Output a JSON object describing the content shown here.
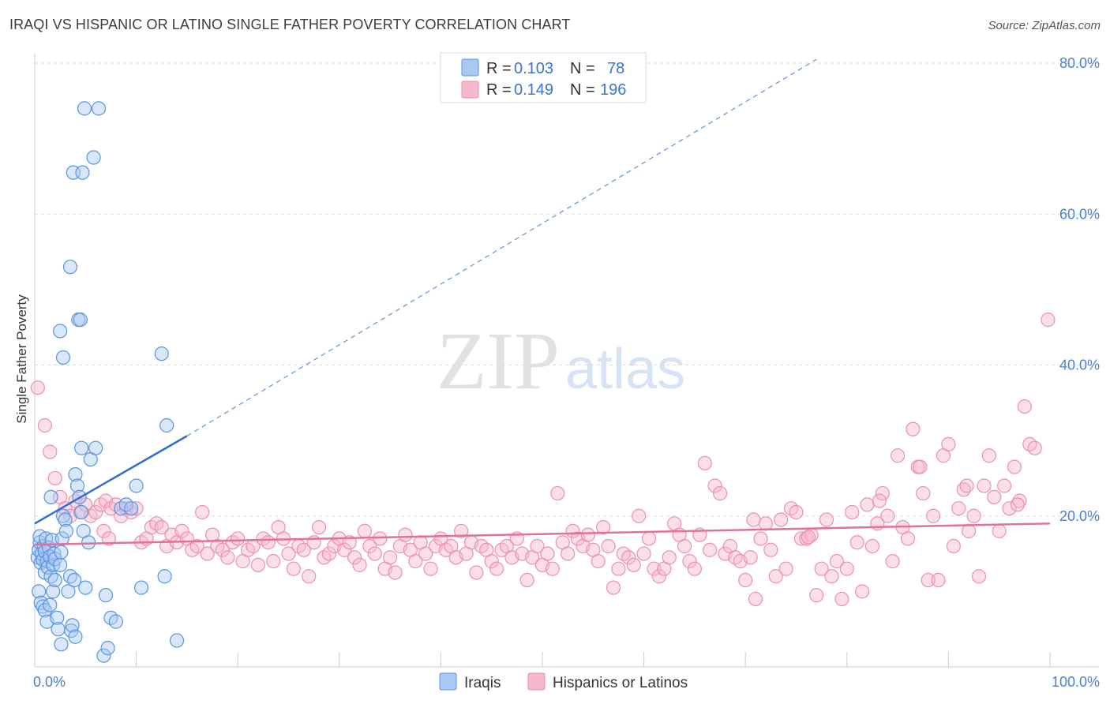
{
  "title": "IRAQI VS HISPANIC OR LATINO SINGLE FATHER POVERTY CORRELATION CHART",
  "source": "Source: ZipAtlas.com",
  "watermark": {
    "zip": "ZIP",
    "atlas": "atlas"
  },
  "colors": {
    "iraqis_fill": "#a9c9f5",
    "iraqis_stroke": "#5b93de",
    "iraqis_line": "#2f6fd0",
    "hisp_fill": "#f7b8cc",
    "hisp_stroke": "#ec8fb0",
    "hisp_line": "#e2709a",
    "axis_text": "#4a7fd4",
    "grid": "#dddddd"
  },
  "legend_top": [
    {
      "r_label": "R =",
      "r_value": "0.103",
      "n_label": "N =",
      "n_value": "78"
    },
    {
      "r_label": "R =",
      "r_value": "0.149",
      "n_label": "N =",
      "n_value": "196"
    }
  ],
  "chart_data": {
    "type": "scatter",
    "title": "IRAQI VS HISPANIC OR LATINO SINGLE FATHER POVERTY CORRELATION CHART",
    "xlabel": "",
    "ylabel": "Single Father Poverty",
    "xlim": [
      0,
      100
    ],
    "ylim": [
      0,
      80
    ],
    "x_tick_labels": [
      {
        "value": 0,
        "label": "0.0%"
      },
      {
        "value": 100,
        "label": "100.0%"
      }
    ],
    "y_tick_labels": [
      {
        "value": 20,
        "label": "20.0%"
      },
      {
        "value": 40,
        "label": "40.0%"
      },
      {
        "value": 60,
        "label": "60.0%"
      },
      {
        "value": 80,
        "label": "80.0%"
      }
    ],
    "grid": "horizontal dashed",
    "legend_position": "bottom-center",
    "series": [
      {
        "name": "Iraqis",
        "r": 0.103,
        "n": 78,
        "trend_solid": [
          [
            0,
            19.0
          ],
          [
            15,
            30.6
          ]
        ],
        "trend_dashed": [
          [
            15,
            30.6
          ],
          [
            77,
            80.5
          ]
        ],
        "points": [
          [
            0.3,
            14.5
          ],
          [
            0.4,
            15.5
          ],
          [
            0.5,
            16.5
          ],
          [
            0.5,
            17.3
          ],
          [
            0.6,
            13.8
          ],
          [
            0.7,
            15.0
          ],
          [
            0.8,
            14.2
          ],
          [
            0.9,
            16.0
          ],
          [
            1.0,
            15.3
          ],
          [
            1.0,
            12.5
          ],
          [
            1.1,
            17.0
          ],
          [
            1.2,
            14.0
          ],
          [
            1.3,
            13.2
          ],
          [
            1.4,
            15.8
          ],
          [
            1.5,
            14.6
          ],
          [
            1.6,
            12.0
          ],
          [
            1.7,
            16.8
          ],
          [
            1.8,
            13.5
          ],
          [
            1.9,
            15.0
          ],
          [
            2.0,
            14.3
          ],
          [
            0.4,
            10.0
          ],
          [
            0.6,
            8.5
          ],
          [
            0.8,
            8.0
          ],
          [
            1.0,
            7.5
          ],
          [
            1.2,
            6.0
          ],
          [
            1.5,
            8.2
          ],
          [
            1.6,
            22.5
          ],
          [
            1.8,
            10.0
          ],
          [
            2.0,
            11.5
          ],
          [
            2.2,
            6.5
          ],
          [
            2.3,
            5.0
          ],
          [
            2.5,
            13.5
          ],
          [
            2.6,
            15.2
          ],
          [
            2.7,
            17.0
          ],
          [
            2.8,
            20.0
          ],
          [
            3.0,
            19.5
          ],
          [
            3.1,
            18.0
          ],
          [
            3.3,
            10.0
          ],
          [
            3.5,
            12.0
          ],
          [
            3.6,
            4.8
          ],
          [
            3.7,
            5.5
          ],
          [
            3.9,
            11.5
          ],
          [
            4.0,
            25.5
          ],
          [
            4.2,
            24.0
          ],
          [
            4.4,
            22.5
          ],
          [
            4.6,
            20.5
          ],
          [
            4.8,
            18.0
          ],
          [
            5.0,
            10.5
          ],
          [
            5.3,
            16.5
          ],
          [
            5.5,
            27.5
          ],
          [
            2.5,
            44.5
          ],
          [
            2.8,
            41.0
          ],
          [
            3.5,
            53.0
          ],
          [
            4.3,
            46.0
          ],
          [
            4.5,
            46.0
          ],
          [
            3.8,
            65.5
          ],
          [
            4.7,
            65.5
          ],
          [
            5.8,
            67.5
          ],
          [
            4.9,
            74.0
          ],
          [
            6.3,
            74.0
          ],
          [
            4.0,
            4.0
          ],
          [
            2.6,
            3.0
          ],
          [
            6.8,
            1.5
          ],
          [
            7.2,
            2.5
          ],
          [
            7.5,
            6.5
          ],
          [
            8.0,
            6.0
          ],
          [
            7.0,
            9.5
          ],
          [
            6.0,
            29.0
          ],
          [
            4.6,
            29.0
          ],
          [
            8.5,
            21.0
          ],
          [
            9.0,
            21.5
          ],
          [
            9.5,
            21.0
          ],
          [
            10.0,
            24.0
          ],
          [
            10.5,
            10.5
          ],
          [
            12.5,
            41.5
          ],
          [
            12.8,
            12.0
          ],
          [
            13.0,
            32.0
          ],
          [
            14.0,
            3.5
          ]
        ]
      },
      {
        "name": "Hispanics or Latinos",
        "r": 0.149,
        "n": 196,
        "trend_solid": [
          [
            0,
            16.2
          ],
          [
            100,
            19.0
          ]
        ],
        "points": [
          [
            0.3,
            37.0
          ],
          [
            1.0,
            32.0
          ],
          [
            1.5,
            28.5
          ],
          [
            2.0,
            25.0
          ],
          [
            2.5,
            22.5
          ],
          [
            3.0,
            21.0
          ],
          [
            3.5,
            20.0
          ],
          [
            4.0,
            22.0
          ],
          [
            4.5,
            20.5
          ],
          [
            5.0,
            21.5
          ],
          [
            5.5,
            20.0
          ],
          [
            6.0,
            20.5
          ],
          [
            6.5,
            21.5
          ],
          [
            7.0,
            22.0
          ],
          [
            7.5,
            21.0
          ],
          [
            8.0,
            21.5
          ],
          [
            6.8,
            18.0
          ],
          [
            7.3,
            17.0
          ],
          [
            8.5,
            20.0
          ],
          [
            9.0,
            21.0
          ],
          [
            9.5,
            20.5
          ],
          [
            10.0,
            21.0
          ],
          [
            10.5,
            16.5
          ],
          [
            11.0,
            17.0
          ],
          [
            11.5,
            18.5
          ],
          [
            12.0,
            19.0
          ],
          [
            12.5,
            18.5
          ],
          [
            13.0,
            16.0
          ],
          [
            13.5,
            17.5
          ],
          [
            14.0,
            16.5
          ],
          [
            14.5,
            18.0
          ],
          [
            15.0,
            17.0
          ],
          [
            15.5,
            15.5
          ],
          [
            16.0,
            16.0
          ],
          [
            16.5,
            20.5
          ],
          [
            17.0,
            15.0
          ],
          [
            17.5,
            17.5
          ],
          [
            18.0,
            16.0
          ],
          [
            18.5,
            15.5
          ],
          [
            19.0,
            14.5
          ],
          [
            19.5,
            16.5
          ],
          [
            20.0,
            17.0
          ],
          [
            20.5,
            14.0
          ],
          [
            21.0,
            15.5
          ],
          [
            21.5,
            16.0
          ],
          [
            22.0,
            13.5
          ],
          [
            22.5,
            17.0
          ],
          [
            23.0,
            16.5
          ],
          [
            23.5,
            14.0
          ],
          [
            24.0,
            18.5
          ],
          [
            24.5,
            17.0
          ],
          [
            25.0,
            15.0
          ],
          [
            25.5,
            13.0
          ],
          [
            26.0,
            16.0
          ],
          [
            26.5,
            15.5
          ],
          [
            27.0,
            12.0
          ],
          [
            27.5,
            16.5
          ],
          [
            28.0,
            18.5
          ],
          [
            28.5,
            14.5
          ],
          [
            29.0,
            15.0
          ],
          [
            29.5,
            16.0
          ],
          [
            30.0,
            17.0
          ],
          [
            30.5,
            15.5
          ],
          [
            31.0,
            16.5
          ],
          [
            31.5,
            14.5
          ],
          [
            32.0,
            13.5
          ],
          [
            32.5,
            18.0
          ],
          [
            33.0,
            16.0
          ],
          [
            33.5,
            15.0
          ],
          [
            34.0,
            17.0
          ],
          [
            34.5,
            13.0
          ],
          [
            35.0,
            14.5
          ],
          [
            35.5,
            12.5
          ],
          [
            36.0,
            16.0
          ],
          [
            36.5,
            17.5
          ],
          [
            37.0,
            15.5
          ],
          [
            37.5,
            14.0
          ],
          [
            38.0,
            16.5
          ],
          [
            38.5,
            15.0
          ],
          [
            39.0,
            13.0
          ],
          [
            39.5,
            16.0
          ],
          [
            40.0,
            17.0
          ],
          [
            40.5,
            15.5
          ],
          [
            41.0,
            16.0
          ],
          [
            41.5,
            14.5
          ],
          [
            42.0,
            18.0
          ],
          [
            42.5,
            15.0
          ],
          [
            43.0,
            16.5
          ],
          [
            43.5,
            12.5
          ],
          [
            44.0,
            16.0
          ],
          [
            44.5,
            15.5
          ],
          [
            45.0,
            14.0
          ],
          [
            45.5,
            13.0
          ],
          [
            46.0,
            15.5
          ],
          [
            46.5,
            16.0
          ],
          [
            47.0,
            14.5
          ],
          [
            47.5,
            17.0
          ],
          [
            48.0,
            15.0
          ],
          [
            48.5,
            11.5
          ],
          [
            49.0,
            14.5
          ],
          [
            49.5,
            16.0
          ],
          [
            50.0,
            13.5
          ],
          [
            50.5,
            15.0
          ],
          [
            51.0,
            13.0
          ],
          [
            51.5,
            23.0
          ],
          [
            52.0,
            16.5
          ],
          [
            52.5,
            15.0
          ],
          [
            53.0,
            18.0
          ],
          [
            53.5,
            17.0
          ],
          [
            54.0,
            16.0
          ],
          [
            54.5,
            17.5
          ],
          [
            55.0,
            15.5
          ],
          [
            55.5,
            14.0
          ],
          [
            56.0,
            18.5
          ],
          [
            56.5,
            16.0
          ],
          [
            57.0,
            10.5
          ],
          [
            57.5,
            13.0
          ],
          [
            58.0,
            15.0
          ],
          [
            58.5,
            14.5
          ],
          [
            59.0,
            13.5
          ],
          [
            59.5,
            20.0
          ],
          [
            60.0,
            15.0
          ],
          [
            60.5,
            17.0
          ],
          [
            61.0,
            13.0
          ],
          [
            61.5,
            12.0
          ],
          [
            62.0,
            13.0
          ],
          [
            62.5,
            14.5
          ],
          [
            63.0,
            19.0
          ],
          [
            63.5,
            17.5
          ],
          [
            64.0,
            16.0
          ],
          [
            64.5,
            14.0
          ],
          [
            65.0,
            13.0
          ],
          [
            65.5,
            17.5
          ],
          [
            66.0,
            27.0
          ],
          [
            66.5,
            15.5
          ],
          [
            67.0,
            24.0
          ],
          [
            67.5,
            23.0
          ],
          [
            68.0,
            15.0
          ],
          [
            68.5,
            16.0
          ],
          [
            69.0,
            14.5
          ],
          [
            69.5,
            14.0
          ],
          [
            70.0,
            11.5
          ],
          [
            70.5,
            14.5
          ],
          [
            71.0,
            9.0
          ],
          [
            71.5,
            17.0
          ],
          [
            72.0,
            19.0
          ],
          [
            72.5,
            15.5
          ],
          [
            73.0,
            12.0
          ],
          [
            73.5,
            19.5
          ],
          [
            74.0,
            13.0
          ],
          [
            74.5,
            21.0
          ],
          [
            75.0,
            20.5
          ],
          [
            75.5,
            17.0
          ],
          [
            76.0,
            17.0
          ],
          [
            76.5,
            17.5
          ],
          [
            77.0,
            9.5
          ],
          [
            77.5,
            13.0
          ],
          [
            78.0,
            19.5
          ],
          [
            78.5,
            12.0
          ],
          [
            79.0,
            14.0
          ],
          [
            79.5,
            9.0
          ],
          [
            80.0,
            13.0
          ],
          [
            80.5,
            20.5
          ],
          [
            81.0,
            16.5
          ],
          [
            81.5,
            10.0
          ],
          [
            82.0,
            21.5
          ],
          [
            82.5,
            16.0
          ],
          [
            83.0,
            19.0
          ],
          [
            83.5,
            23.0
          ],
          [
            84.0,
            20.0
          ],
          [
            84.5,
            14.0
          ],
          [
            85.0,
            28.0
          ],
          [
            85.5,
            18.5
          ],
          [
            86.0,
            17.0
          ],
          [
            86.5,
            31.5
          ],
          [
            87.0,
            26.5
          ],
          [
            87.5,
            23.0
          ],
          [
            88.0,
            11.5
          ],
          [
            88.5,
            20.0
          ],
          [
            89.0,
            11.5
          ],
          [
            89.5,
            28.0
          ],
          [
            90.0,
            29.5
          ],
          [
            90.5,
            16.0
          ],
          [
            91.0,
            21.0
          ],
          [
            91.5,
            23.5
          ],
          [
            92.0,
            18.0
          ],
          [
            92.5,
            20.0
          ],
          [
            93.0,
            12.0
          ],
          [
            93.5,
            24.0
          ],
          [
            94.0,
            28.0
          ],
          [
            94.5,
            22.5
          ],
          [
            95.0,
            18.0
          ],
          [
            95.5,
            24.0
          ],
          [
            96.0,
            21.0
          ],
          [
            96.5,
            26.5
          ],
          [
            97.0,
            22.0
          ],
          [
            97.5,
            34.5
          ],
          [
            98.0,
            29.5
          ],
          [
            98.5,
            29.0
          ],
          [
            99.8,
            46.0
          ],
          [
            96.8,
            21.5
          ],
          [
            91.8,
            24.0
          ],
          [
            87.2,
            26.5
          ],
          [
            83.2,
            22.0
          ],
          [
            76.2,
            17.2
          ],
          [
            70.8,
            19.5
          ]
        ]
      }
    ]
  },
  "bottom_legend": [
    {
      "label": "Iraqis"
    },
    {
      "label": "Hispanics or Latinos"
    }
  ]
}
